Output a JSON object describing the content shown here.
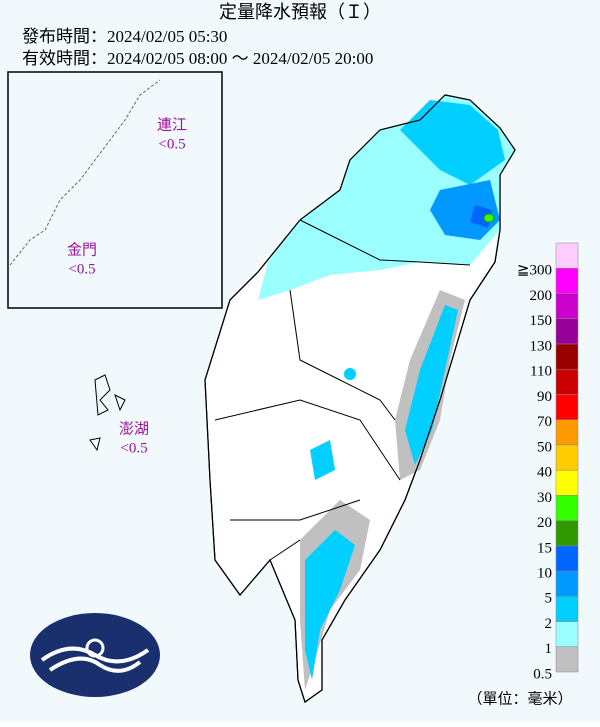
{
  "header": {
    "title": "定量降水預報（Ｉ）",
    "issued": "發布時間：2024/02/05 05:30",
    "valid": "有效時間：2024/02/05 08:00 ～ 2024/02/05 20:00"
  },
  "islands": [
    {
      "name": "連江",
      "amount": "<0.5"
    },
    {
      "name": "金門",
      "amount": "<0.5"
    },
    {
      "name": "澎湖",
      "amount": "<0.5"
    }
  ],
  "legend": {
    "levels": [
      {
        "label": "0.5",
        "color": "#c0c0c0"
      },
      {
        "label": "1",
        "color": "#9bffff"
      },
      {
        "label": "2",
        "color": "#00cfff"
      },
      {
        "label": "5",
        "color": "#0198ff"
      },
      {
        "label": "10",
        "color": "#0165ff"
      },
      {
        "label": "15",
        "color": "#309901"
      },
      {
        "label": "20",
        "color": "#32ff00"
      },
      {
        "label": "30",
        "color": "#ffff00"
      },
      {
        "label": "40",
        "color": "#ffcc00"
      },
      {
        "label": "50",
        "color": "#ff9900"
      },
      {
        "label": "70",
        "color": "#ff0000"
      },
      {
        "label": "90",
        "color": "#cc0000"
      },
      {
        "label": "110",
        "color": "#990000"
      },
      {
        "label": "130",
        "color": "#990099"
      },
      {
        "label": "150",
        "color": "#cc00cc"
      },
      {
        "label": "200",
        "color": "#ff00ff"
      },
      {
        "label": "≧300",
        "color": "#ffccff"
      }
    ],
    "unit": "（單位：毫米）"
  }
}
